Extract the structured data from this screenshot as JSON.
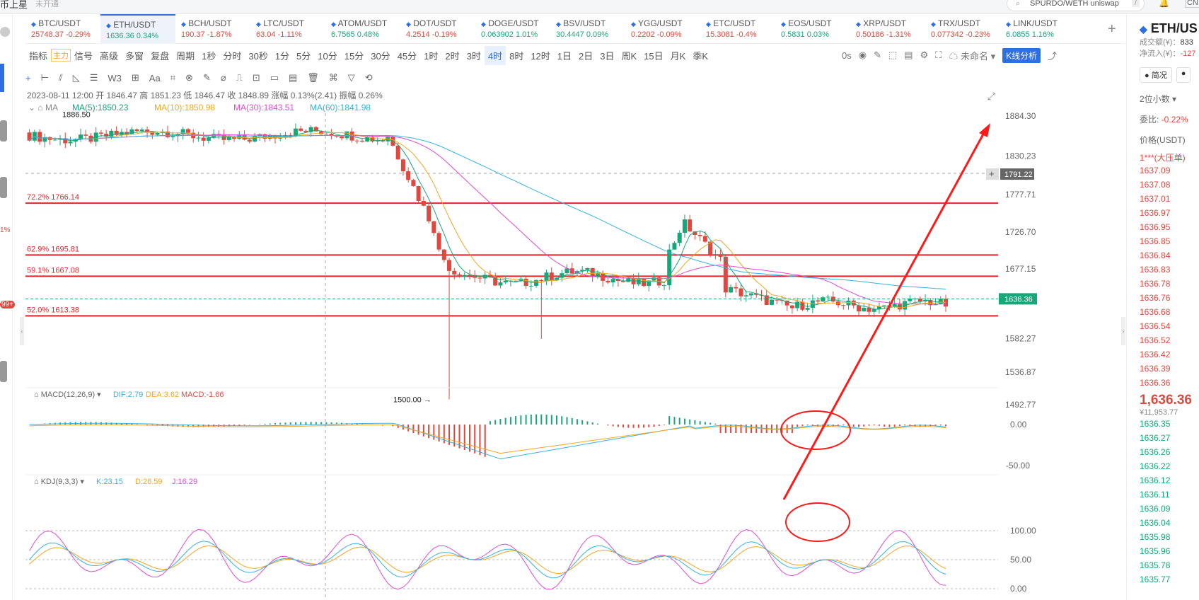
{
  "top": {
    "left_label": "币上星",
    "badge": "未开通",
    "search": "SPURDO/WETH uniswap",
    "search_key": "/",
    "right_code": "CN"
  },
  "tickers": [
    {
      "name": "BTC/USDT",
      "price": "25748.37",
      "change": "-0.29%",
      "dir": "dn"
    },
    {
      "name": "ETH/USDT",
      "price": "1636.36",
      "change": "0.34%",
      "dir": "up",
      "active": true
    },
    {
      "name": "BCH/USDT",
      "price": "190.37",
      "change": "-1.87%",
      "dir": "dn"
    },
    {
      "name": "LTC/USDT",
      "price": "63.04",
      "change": "-1.11%",
      "dir": "dn"
    },
    {
      "name": "ATOM/USDT",
      "price": "6.7565",
      "change": "0.48%",
      "dir": "up"
    },
    {
      "name": "DOT/USDT",
      "price": "4.2514",
      "change": "-0.19%",
      "dir": "dn"
    },
    {
      "name": "DOGE/USDT",
      "price": "0.063902",
      "change": "1.01%",
      "dir": "up"
    },
    {
      "name": "BSV/USDT",
      "price": "30.4447",
      "change": "0.09%",
      "dir": "up"
    },
    {
      "name": "YGG/USDT",
      "price": "0.2202",
      "change": "-0.09%",
      "dir": "dn"
    },
    {
      "name": "ETC/USDT",
      "price": "15.3081",
      "change": "-0.4%",
      "dir": "dn"
    },
    {
      "name": "EOS/USDT",
      "price": "0.5831",
      "change": "0.03%",
      "dir": "up"
    },
    {
      "name": "XRP/USDT",
      "price": "0.50186",
      "change": "-1.31%",
      "dir": "dn"
    },
    {
      "name": "TRX/USDT",
      "price": "0.077342",
      "change": "-0.23%",
      "dir": "dn"
    },
    {
      "name": "LINK/USDT",
      "price": "6.0855",
      "change": "1.16%",
      "dir": "up"
    }
  ],
  "toolbar": [
    "指标",
    "主力",
    "信号",
    "高级",
    "多窗",
    "复盘",
    "周期",
    "1秒",
    "分时",
    "30秒",
    "1分",
    "5分",
    "10分",
    "15分",
    "30分",
    "45分",
    "1时",
    "2时",
    "3时",
    "4时",
    "8时",
    "12时",
    "1日",
    "2日",
    "3日",
    "周K",
    "15日",
    "月K",
    "季K"
  ],
  "toolbar_active": "4时",
  "toolbar_right": {
    "zero": "0s",
    "name": "未命名",
    "analysis": "K线分析"
  },
  "drawtools": [
    "+",
    "⊢",
    "⫽",
    "◺",
    "☰",
    "W3",
    "⊞",
    "Aa",
    "⌗",
    "⊗",
    "✎",
    "⌀",
    "⎍",
    "⊡",
    "▭",
    "▤",
    "🗑",
    "⌘",
    "▽",
    "⟲"
  ],
  "candle_info": {
    "date": "2023-08-11 12:00",
    "open_l": "开",
    "open": "1846.47",
    "high_l": "高",
    "high": "1851.23",
    "low_l": "低",
    "low": "1846.47",
    "close_l": "收",
    "close": "1848.89",
    "chg_l": "涨幅",
    "chg": "0.13%(2.41)",
    "amp_l": "振幅",
    "amp": "0.26%"
  },
  "ma": {
    "label": "MA",
    "ma5": "MA(5):1850.23",
    "ma10": "MA(10):1850.98",
    "ma30": "MA(30):1843.51",
    "ma60": "MA(60):1841.98"
  },
  "fib": [
    {
      "text": "72.2% 1766.14",
      "price": 1766.14
    },
    {
      "text": "62.9% 1695.81",
      "price": 1695.81
    },
    {
      "text": "59.1% 1667.08",
      "price": 1667.08
    },
    {
      "text": "52.0% 1613.38",
      "price": 1613.38
    }
  ],
  "price_axis": [
    "1884.30",
    "1830.23",
    "1777.71",
    "1726.70",
    "1677.15",
    "1582.27",
    "1536.87",
    "1492.77"
  ],
  "price_marks": {
    "high": "1886.50",
    "low": "1500.00",
    "crosshair": "1791.22",
    "last": "1636.36"
  },
  "macd": {
    "label": "MACD(12,26,9)",
    "dif": "DIF:2.79",
    "dea": "DEA:3.62",
    "macd": "MACD:-1.66",
    "axis": [
      "0.00",
      "-50.00"
    ]
  },
  "kdj": {
    "label": "KDJ(9,3,3)",
    "k": "K:23.15",
    "d": "D:26.59",
    "j": "J:16.29",
    "axis": [
      "100.00",
      "50.00",
      "0.00"
    ]
  },
  "right": {
    "symbol": "ETH/US",
    "vol_label": "成交额(¥)：",
    "vol": "833",
    "flow_label": "净流入(¥)：",
    "flow": "-127",
    "tab1": "简况",
    "decimals": "2位小数",
    "ratio_label": "委比:",
    "ratio": "-0.22%",
    "price_header": "价格(USDT)",
    "big_order": "1***(大压单)",
    "asks": [
      "1637.09",
      "1637.08",
      "1637.01",
      "1636.97",
      "1636.95",
      "1636.85",
      "1636.84",
      "1636.83",
      "1636.78",
      "1636.76",
      "1636.68",
      "1636.54",
      "1636.52",
      "1636.42",
      "1636.39",
      "1636.36"
    ],
    "last": "1,636.36",
    "last_cny": "¥11,953.77",
    "bids": [
      "1636.35",
      "1636.27",
      "1636.26",
      "1636.22",
      "1636.12",
      "1636.11",
      "1636.09",
      "1636.04",
      "1635.98",
      "1635.96",
      "1635.78",
      "1635.77"
    ]
  },
  "colors": {
    "up": "#16a87a",
    "down": "#e0483f",
    "fib": "#e8232a",
    "annotation": "#ff1a1a",
    "ma5": "#f5a623",
    "ma10": "#e849d4",
    "ma60": "#35b3e0"
  }
}
